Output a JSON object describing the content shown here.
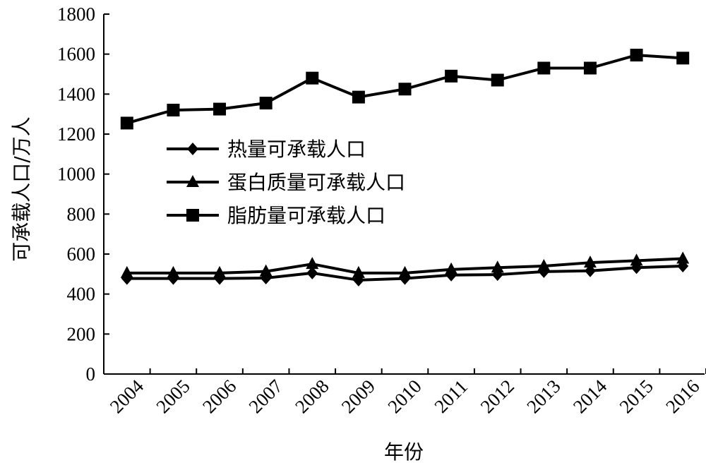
{
  "chart_data": {
    "type": "line",
    "title": "",
    "xlabel": "年份",
    "ylabel": "可承载人口/万人",
    "categories": [
      "2004",
      "2005",
      "2006",
      "2007",
      "2008",
      "2009",
      "2010",
      "2011",
      "2012",
      "2013",
      "2014",
      "2015",
      "2016"
    ],
    "ylim": [
      0,
      1800
    ],
    "yticks": [
      0,
      200,
      400,
      600,
      800,
      1000,
      1200,
      1400,
      1600,
      1800
    ],
    "grid": false,
    "legend_position": "upper-left",
    "series": [
      {
        "name": "热量可承载人口",
        "marker": "diamond",
        "color": "#000000",
        "values": [
          478,
          478,
          478,
          480,
          505,
          470,
          478,
          495,
          497,
          512,
          516,
          532,
          540
        ]
      },
      {
        "name": "蛋白质量可承载人口",
        "marker": "triangle",
        "color": "#000000",
        "values": [
          505,
          505,
          505,
          513,
          550,
          505,
          505,
          523,
          532,
          540,
          557,
          567,
          577
        ]
      },
      {
        "name": "脂肪量可承载人口",
        "marker": "square",
        "color": "#000000",
        "values": [
          1255,
          1320,
          1325,
          1355,
          1480,
          1385,
          1425,
          1490,
          1470,
          1530,
          1530,
          1595,
          1580
        ]
      }
    ]
  }
}
